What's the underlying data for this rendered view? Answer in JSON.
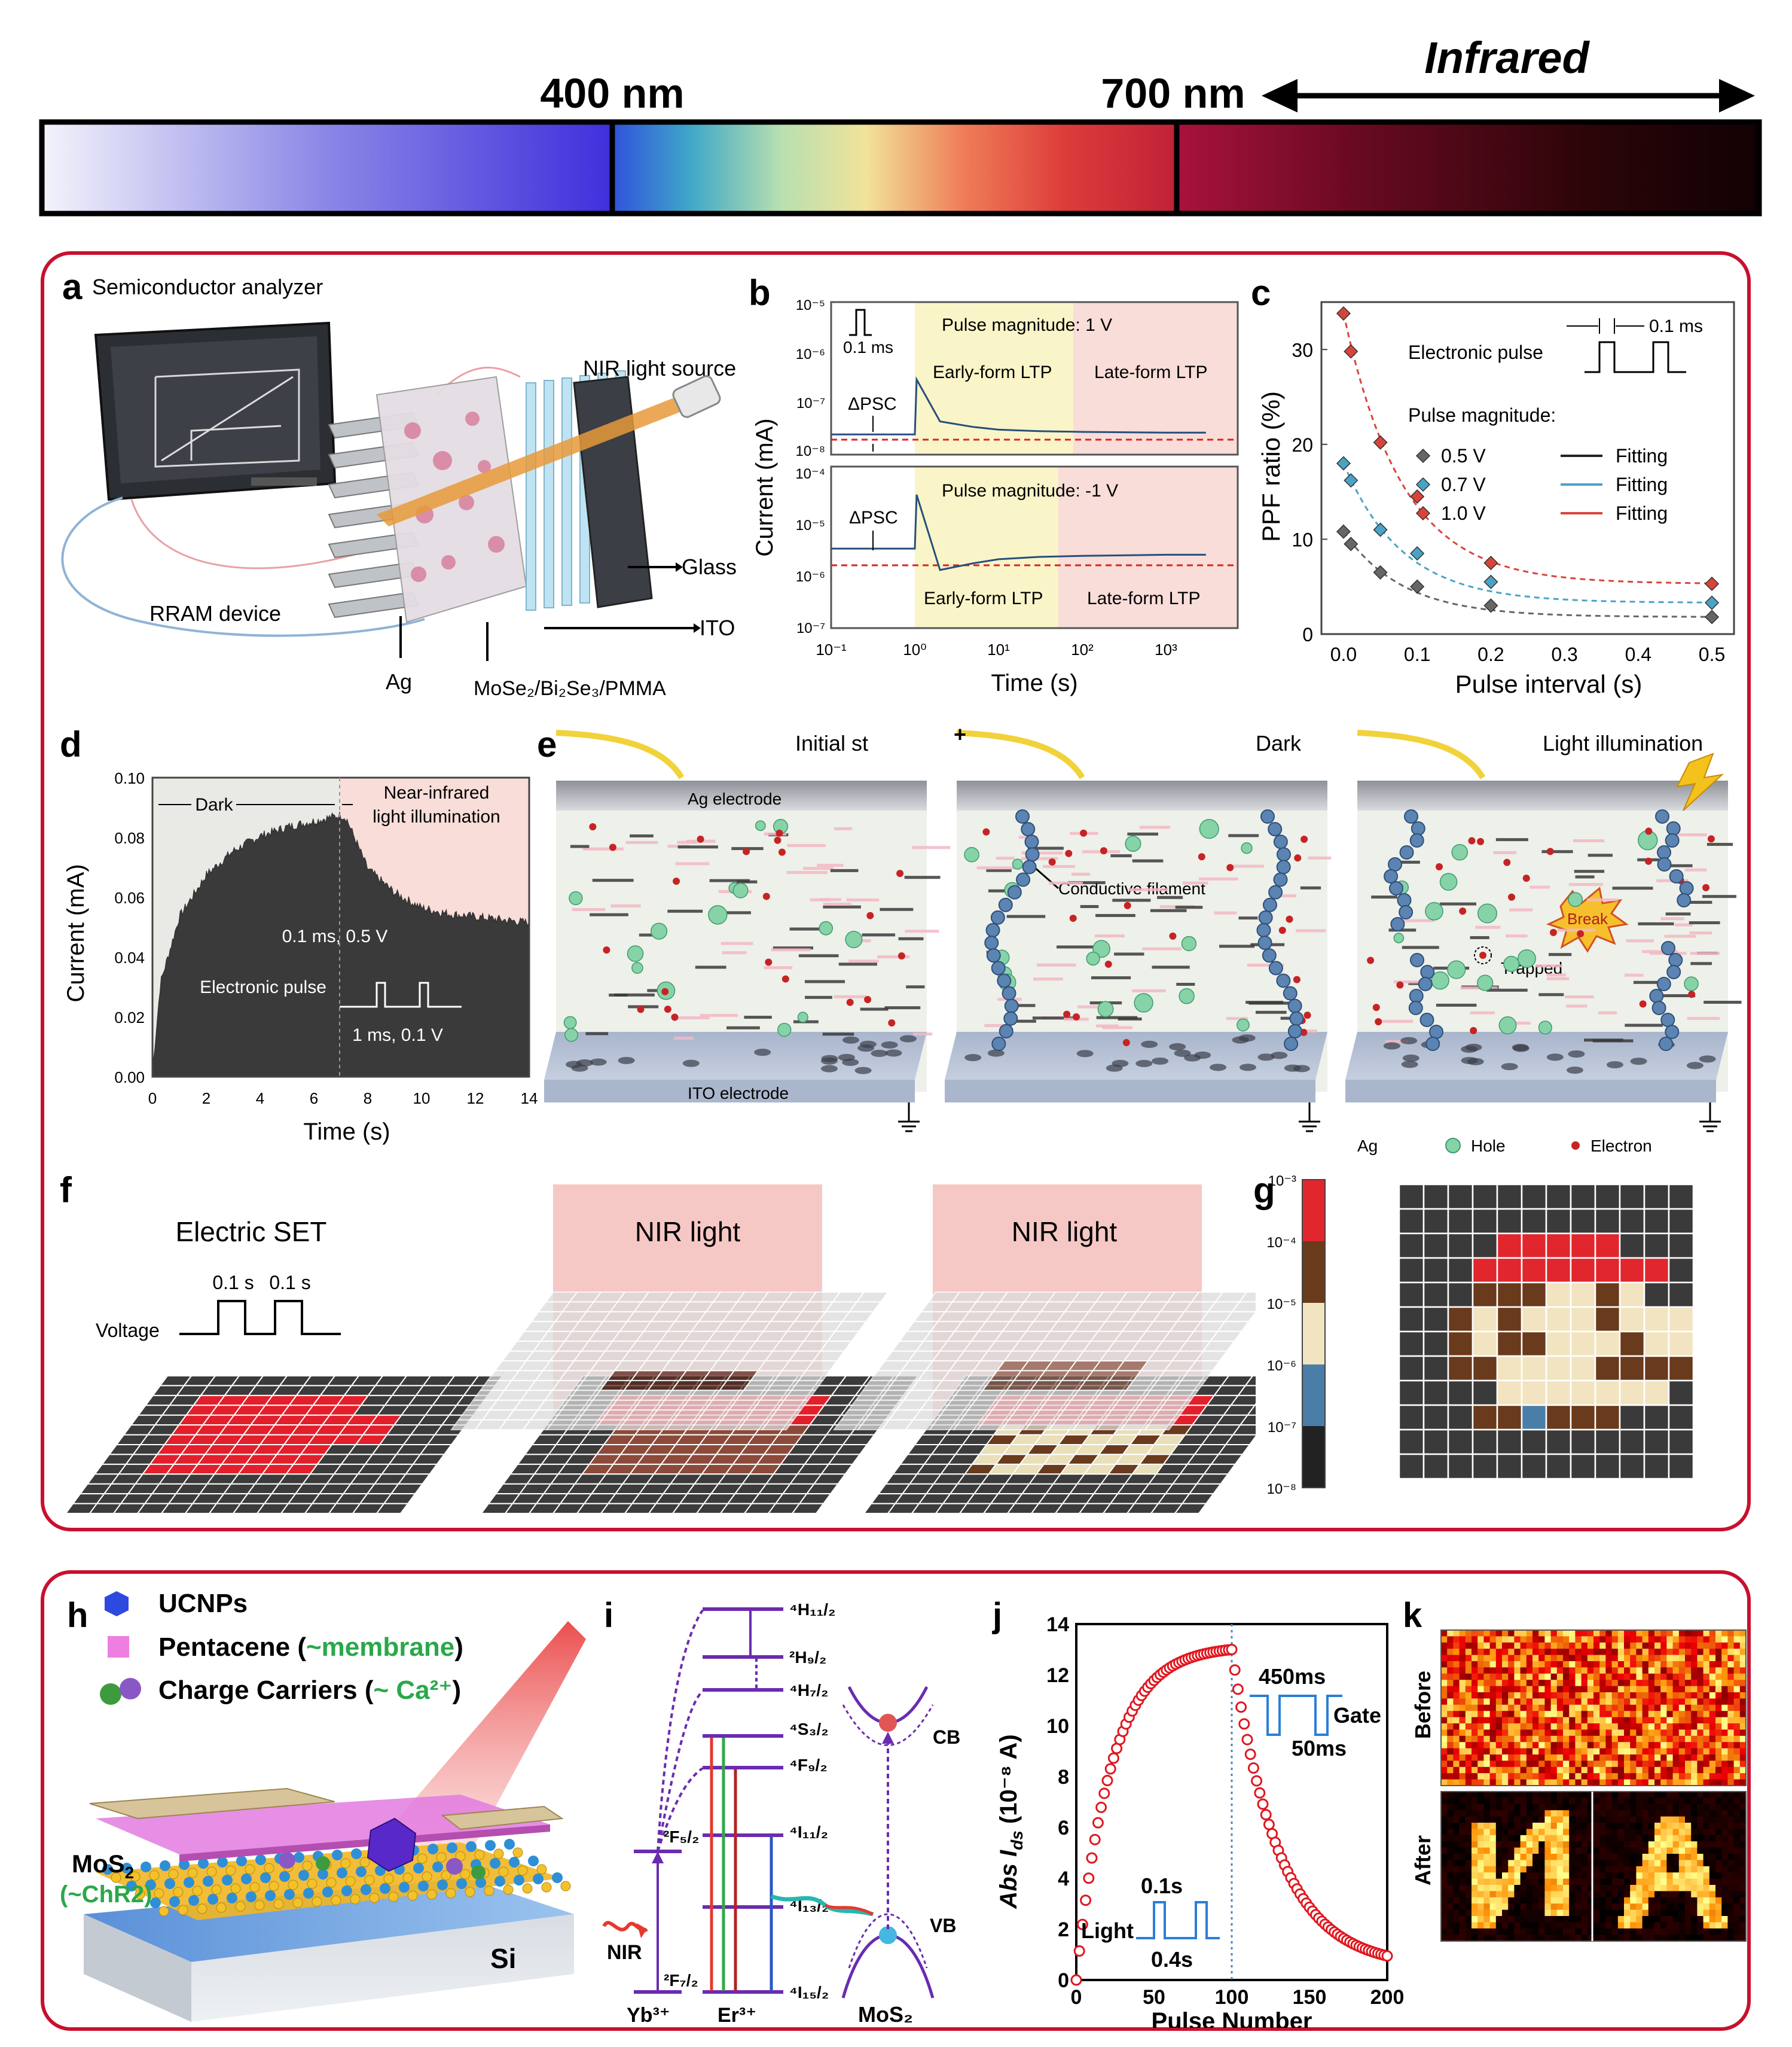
{
  "spectrum": {
    "label_400": "400 nm",
    "label_700": "700 nm",
    "label_infrared": "Infrared"
  },
  "panel_a": {
    "letter": "a",
    "semiconductor_analyzer": "Semiconductor analyzer",
    "nir_light_source": "NIR light source",
    "glass": "Glass",
    "ito": "ITO",
    "rram_device": "RRAM device",
    "ag": "Ag",
    "stack": "MoSe₂/Bi₂Se₃/PMMA"
  },
  "panel_b": {
    "letter": "b",
    "ylabel": "Current (mA)",
    "xlabel": "Time (s)",
    "pulse_width": "0.1 ms",
    "top_title": "Pulse magnitude: 1 V",
    "bottom_title": "Pulse magnitude: -1 V",
    "early_ltp": "Early-form LTP",
    "late_ltp": "Late-form LTP",
    "psc": "ΔPSC",
    "top_yticks": [
      "10⁻⁵",
      "10⁻⁶",
      "10⁻⁷",
      "10⁻⁸"
    ],
    "bottom_yticks": [
      "10⁻⁴",
      "10⁻⁵",
      "10⁻⁶",
      "10⁻⁷"
    ],
    "xticks": [
      "10⁻¹",
      "10⁰",
      "10¹",
      "10²",
      "10³"
    ]
  },
  "panel_c": {
    "letter": "c",
    "ylabel": "PPF ratio (%)",
    "xlabel": "Pulse interval (s)",
    "pulse_label": "Electronic pulse",
    "interval_label": "0.1 ms",
    "magnitude_label": "Pulse magnitude:",
    "fitting": "Fitting"
  },
  "panel_d": {
    "letter": "d",
    "ylabel": "Current (mA)",
    "xlabel": "Time (s)",
    "dark": "Dark",
    "nir_line1": "Near-infrared",
    "nir_line2": "light illumination",
    "pulse_param": "0.1 ms,  0.5 V",
    "electronic_pulse": "Electronic pulse",
    "pulse_period": "1 ms, 0.1 V",
    "yticks": [
      "0.10",
      "0.08",
      "0.06",
      "0.04",
      "0.02",
      "0.00"
    ],
    "xticks": [
      "0",
      "2",
      "4",
      "6",
      "8",
      "10",
      "12",
      "14"
    ]
  },
  "panel_e": {
    "letter": "e",
    "title1": "Initial st",
    "title2": "Dark",
    "title3": "Light illumination",
    "ag_electrode": "Ag electrode",
    "ito_electrode": "ITO electrode",
    "conductive_filament": "Conductive filament",
    "break": "Break",
    "trapped": "Trapped",
    "plus": "+",
    "legend_ag": "Ag",
    "legend_hole": "Hole",
    "legend_electron": "Electron"
  },
  "panel_f": {
    "letter": "f",
    "electric_set": "Electric SET",
    "pulse1": "0.1 s",
    "pulse2": "0.1 s",
    "voltage": "Voltage",
    "nir1": "NIR light",
    "nir2": "NIR light"
  },
  "panel_g": {
    "letter": "g",
    "colorbar_ticks": [
      "10⁻³",
      "10⁻⁴",
      "10⁻⁵",
      "10⁻⁶",
      "10⁻⁷",
      "10⁻⁸"
    ]
  },
  "panel_h": {
    "letter": "h",
    "ucnps": "UCNPs",
    "pentacene": "Pentacene (",
    "membrane": "~membrane",
    "close": ")",
    "carriers": "Charge Carriers (",
    "ca": "~ Ca²⁺",
    "mos2": "MoS",
    "mos2_sub": "2",
    "chr2": "(~ChR2)",
    "si": "Si"
  },
  "panel_i": {
    "letter": "i",
    "levels_er": [
      "⁴H₁₁/₂",
      "²H₉/₂",
      "⁴H₇/₂",
      "⁴S₃/₂",
      "⁴F₉/₂",
      "⁴I₁₁/₂",
      "⁴I₁₃/₂",
      "⁴I₁₅/₂"
    ],
    "yb_f52": "²F₅/₂",
    "yb_f72": "²F₇/₂",
    "nir": "NIR",
    "yb": "Yb³⁺",
    "er": "Er³⁺",
    "mos2": "MoS₂",
    "cb": "CB",
    "vb": "VB"
  },
  "panel_j": {
    "letter": "j",
    "ylabel": "Abs I",
    "ylabel_sub": "ds",
    "ylabel_unit": " (10⁻⁸ A)",
    "xlabel": "Pulse Number",
    "gate_high": "450ms",
    "gate_low": "50ms",
    "gate": "Gate",
    "light_on": "0.1s",
    "light_off": "0.4s",
    "light": "Light",
    "yticks": [
      "0",
      "2",
      "4",
      "6",
      "8",
      "10",
      "12",
      "14"
    ],
    "xticks": [
      "0",
      "50",
      "100",
      "150",
      "200"
    ]
  },
  "panel_k": {
    "letter": "k",
    "before": "Before",
    "after": "After"
  },
  "chart_data": [
    {
      "type": "line",
      "panel": "b",
      "title": "Pulse magnitude: 1 V",
      "xlabel": "Time (s)",
      "ylabel": "Current (mA)",
      "xscale": "log",
      "yscale": "log",
      "x": [
        0.1,
        0.5,
        1.0,
        1.05,
        2,
        5,
        10,
        30,
        100,
        1000,
        3000
      ],
      "values": [
        2.5e-08,
        2.5e-08,
        2.5e-08,
        3e-07,
        4.5e-08,
        3.5e-08,
        3.1e-08,
        2.9e-08,
        2.8e-08,
        2.7e-08,
        2.7e-08
      ],
      "xlim": [
        0.1,
        3000
      ],
      "ylim": [
        1e-08,
        1e-05
      ]
    },
    {
      "type": "line",
      "panel": "b",
      "title": "Pulse magnitude: -1 V",
      "xlabel": "Time (s)",
      "ylabel": "Current (mA)",
      "xscale": "log",
      "yscale": "log",
      "x": [
        0.1,
        0.5,
        1.0,
        1.05,
        2,
        5,
        10,
        30,
        100,
        1000,
        3000
      ],
      "values": [
        3e-06,
        3e-06,
        3e-06,
        3e-05,
        1.2e-06,
        1.6e-06,
        1.9e-06,
        2.1e-06,
        2.2e-06,
        2.3e-06,
        2.3e-06
      ],
      "xlim": [
        0.1,
        3000
      ],
      "ylim": [
        1e-07,
        0.0001
      ]
    },
    {
      "type": "scatter",
      "panel": "c",
      "xlabel": "Pulse interval (s)",
      "ylabel": "PPF ratio (%)",
      "x": [
        0.0,
        0.01,
        0.05,
        0.1,
        0.2,
        0.5
      ],
      "series": [
        {
          "name": "0.5 V",
          "values": [
            10.8,
            9.5,
            6.5,
            5.0,
            3.0,
            1.8
          ],
          "color": "#666666"
        },
        {
          "name": "0.7 V",
          "values": [
            18.0,
            16.2,
            11.0,
            8.5,
            5.5,
            3.3
          ],
          "color": "#4aa3c6"
        },
        {
          "name": "1.0 V",
          "values": [
            33.8,
            29.8,
            20.2,
            14.5,
            7.5,
            5.3
          ],
          "color": "#d9443a"
        }
      ],
      "xlim": [
        -0.03,
        0.53
      ],
      "ylim": [
        0,
        35
      ],
      "xticks": [
        0.0,
        0.1,
        0.2,
        0.3,
        0.4,
        0.5
      ],
      "yticks": [
        0,
        10,
        20,
        30
      ]
    },
    {
      "type": "area",
      "panel": "d",
      "xlabel": "Time (s)",
      "ylabel": "Current (mA)",
      "x": [
        0,
        0.3,
        1,
        2,
        3,
        4,
        5,
        6,
        7,
        7.2,
        8,
        9,
        10,
        11,
        12,
        13,
        14
      ],
      "values": [
        0.0,
        0.03,
        0.052,
        0.066,
        0.074,
        0.079,
        0.082,
        0.084,
        0.086,
        0.085,
        0.068,
        0.06,
        0.055,
        0.053,
        0.052,
        0.051,
        0.05
      ],
      "xlim": [
        0,
        14
      ],
      "ylim": [
        0,
        0.1
      ]
    },
    {
      "type": "scatter",
      "panel": "j",
      "xlabel": "Pulse Number",
      "ylabel": "Abs Ids (10⁻⁸ A)",
      "model": {
        "rise": {
          "from": 0,
          "to": 100,
          "amplitude": 13.0,
          "tau": 22
        },
        "decay": {
          "from": 100,
          "to": 200,
          "start": 13.0,
          "floor": 0.5,
          "tau": 30
        }
      },
      "xlim": [
        0,
        200
      ],
      "ylim": [
        0,
        14
      ]
    }
  ]
}
